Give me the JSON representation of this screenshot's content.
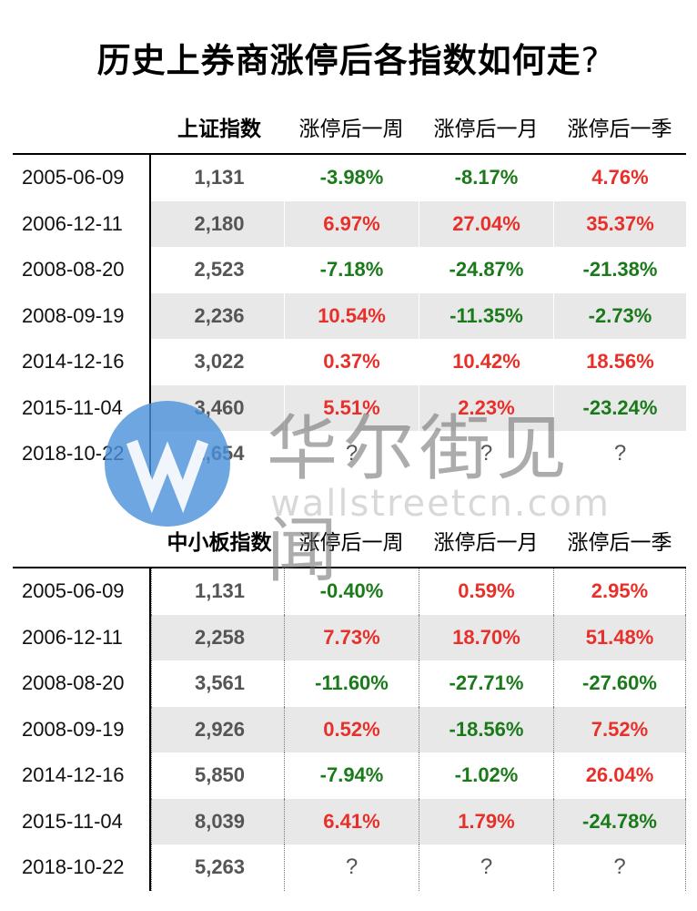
{
  "title": "历史上券商涨停后各指数如何走",
  "title_suffix": "?",
  "table1": {
    "headers": [
      "上证指数",
      "涨停后一周",
      "涨停后一月",
      "涨停后一季"
    ],
    "rows": [
      {
        "date": "2005-06-09",
        "index": "1,131",
        "week": "-3.98%",
        "month": "-8.17%",
        "quarter": "4.76%"
      },
      {
        "date": "2006-12-11",
        "index": "2,180",
        "week": "6.97%",
        "month": "27.04%",
        "quarter": "35.37%"
      },
      {
        "date": "2008-08-20",
        "index": "2,523",
        "week": "-7.18%",
        "month": "-24.87%",
        "quarter": "-21.38%"
      },
      {
        "date": "2008-09-19",
        "index": "2,236",
        "week": "10.54%",
        "month": "-11.35%",
        "quarter": "-2.73%"
      },
      {
        "date": "2014-12-16",
        "index": "3,022",
        "week": "0.37%",
        "month": "10.42%",
        "quarter": "18.56%"
      },
      {
        "date": "2015-11-04",
        "index": "3,460",
        "week": "5.51%",
        "month": "2.23%",
        "quarter": "-23.24%"
      },
      {
        "date": "2018-10-22",
        "index": "2,654",
        "week": "?",
        "month": "?",
        "quarter": "?"
      }
    ]
  },
  "table2": {
    "headers": [
      "中小板指数",
      "涨停后一周",
      "涨停后一月",
      "涨停后一季"
    ],
    "rows": [
      {
        "date": "2005-06-09",
        "index": "1,131",
        "week": "-0.40%",
        "month": "0.59%",
        "quarter": "2.95%"
      },
      {
        "date": "2006-12-11",
        "index": "2,258",
        "week": "7.73%",
        "month": "18.70%",
        "quarter": "51.48%"
      },
      {
        "date": "2008-08-20",
        "index": "3,561",
        "week": "-11.60%",
        "month": "-27.71%",
        "quarter": "-27.60%"
      },
      {
        "date": "2008-09-19",
        "index": "2,926",
        "week": "0.52%",
        "month": "-18.56%",
        "quarter": "7.52%"
      },
      {
        "date": "2014-12-16",
        "index": "5,850",
        "week": "-7.94%",
        "month": "-1.02%",
        "quarter": "26.04%"
      },
      {
        "date": "2015-11-04",
        "index": "8,039",
        "week": "6.41%",
        "month": "1.79%",
        "quarter": "-24.78%"
      },
      {
        "date": "2018-10-22",
        "index": "5,263",
        "week": "?",
        "month": "?",
        "quarter": "?"
      }
    ]
  },
  "watermark": {
    "name": "华尔街见闻",
    "url": "wallstreetcn.com"
  },
  "colors": {
    "positive": "#e8302a",
    "negative": "#1a7a1a",
    "shade": "#e8e8e8",
    "logo": "#4a90d9"
  }
}
